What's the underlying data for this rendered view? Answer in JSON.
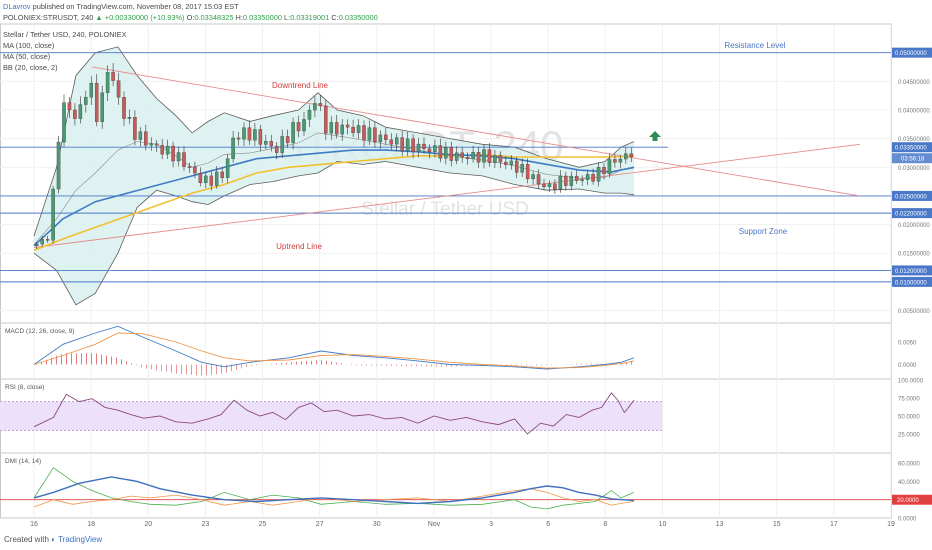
{
  "header": {
    "author": "DLavrov",
    "published": "published on TradingView.com, November 08, 2017 15:03 EST",
    "symbol": "POLONIEX:STRUSDT, 240",
    "change": "▲ +0.00330000 (+10.93%)",
    "open_label": "O:",
    "open": "0.03348325",
    "high_label": "H:",
    "high": "0.03350000",
    "low_label": "L:",
    "low": "0.03319001",
    "close_label": "C:",
    "close": "0.03350000"
  },
  "legend": [
    "Stellar / Tether USD, 240, POLONIEX",
    "MA (100, close)",
    "MA (50, close)",
    "BB (20, close, 2)"
  ],
  "watermark": {
    "symbol": "STRUSDT, 240",
    "name": "Stellar / Tether USD"
  },
  "footer": {
    "created_with": "Created with",
    "brand": "TradingView"
  },
  "colors": {
    "candle_up": "#4b9a73",
    "candle_down": "#c85a5a",
    "ma100": "#f2c12e",
    "ma50": "#3f7cc4",
    "bb_fill": "#d6efef",
    "bb_line": "#5b5b5b",
    "trend": "#e88a8a",
    "level": "#4a78c8",
    "macd": "#3f7cc4",
    "signal": "#f0964a",
    "rsi": "#8b4a7a",
    "rsi_band": "#ece0fb",
    "plus_di": "#4caf50",
    "minus_di": "#f0964a",
    "adx": "#3f6fbf",
    "dmi_level": "#e04040"
  },
  "chart_data": [
    {
      "type": "candlestick",
      "title": "Stellar / Tether USD, 240, POLONIEX",
      "x_ticks": [
        "16",
        "18",
        "20",
        "23",
        "25",
        "27",
        "30",
        "Nov",
        "3",
        "6",
        "8",
        "10",
        "13",
        "15",
        "17",
        "19"
      ],
      "y_ticks": [
        "0.05000000",
        "0.04500000",
        "0.04000000",
        "0.03500000",
        "0.03000000",
        "0.02500000",
        "0.02000000",
        "0.01500000",
        "0.01000000",
        "0.00500000"
      ],
      "ylim": [
        0.003,
        0.055
      ],
      "x_range": [
        15.6,
        34.2
      ],
      "close_series": [
        [
          15.6,
          0.0163
        ],
        [
          16.1,
          0.018
        ],
        [
          16.3,
          0.034
        ],
        [
          16.6,
          0.042
        ],
        [
          16.9,
          0.038
        ],
        [
          17.3,
          0.045
        ],
        [
          17.6,
          0.038
        ],
        [
          17.9,
          0.048
        ],
        [
          18.2,
          0.042
        ],
        [
          18.5,
          0.038
        ],
        [
          18.8,
          0.0355
        ],
        [
          19.2,
          0.034
        ],
        [
          19.6,
          0.033
        ],
        [
          20.0,
          0.032
        ],
        [
          20.4,
          0.03
        ],
        [
          20.7,
          0.028
        ],
        [
          21.0,
          0.0275
        ],
        [
          21.5,
          0.029
        ],
        [
          21.8,
          0.0355
        ],
        [
          22.3,
          0.036
        ],
        [
          22.7,
          0.0345
        ],
        [
          23.1,
          0.033
        ],
        [
          23.6,
          0.0365
        ],
        [
          24.0,
          0.038
        ],
        [
          24.3,
          0.042
        ],
        [
          24.7,
          0.0365
        ],
        [
          25.3,
          0.037
        ],
        [
          25.8,
          0.036
        ],
        [
          26.4,
          0.035
        ],
        [
          27.0,
          0.034
        ],
        [
          27.5,
          0.0335
        ],
        [
          28.0,
          0.033
        ],
        [
          28.6,
          0.032
        ],
        [
          29.1,
          0.0318
        ],
        [
          29.6,
          0.032
        ],
        [
          30.1,
          0.031
        ],
        [
          30.6,
          0.03
        ],
        [
          31.0,
          0.0285
        ],
        [
          31.3,
          0.027
        ],
        [
          31.6,
          0.0265
        ],
        [
          31.9,
          0.0275
        ],
        [
          32.2,
          0.0278
        ],
        [
          32.6,
          0.028
        ],
        [
          33.0,
          0.0285
        ],
        [
          33.4,
          0.0305
        ],
        [
          33.7,
          0.0315
        ],
        [
          34.0,
          0.0318
        ],
        [
          34.2,
          0.0335
        ]
      ],
      "ma50": [
        [
          15.6,
          0.0163
        ],
        [
          16.5,
          0.021
        ],
        [
          17.5,
          0.024
        ],
        [
          18.5,
          0.0255
        ],
        [
          19.5,
          0.027
        ],
        [
          20.5,
          0.0285
        ],
        [
          21.5,
          0.03
        ],
        [
          22.5,
          0.0315
        ],
        [
          23.5,
          0.032
        ],
        [
          24.5,
          0.0325
        ],
        [
          25.5,
          0.033
        ],
        [
          26.5,
          0.033
        ],
        [
          27.5,
          0.0327
        ],
        [
          28.5,
          0.0322
        ],
        [
          29.5,
          0.032
        ],
        [
          30.5,
          0.0315
        ],
        [
          31.5,
          0.0305
        ],
        [
          32.5,
          0.0295
        ],
        [
          33.5,
          0.0292
        ],
        [
          34.2,
          0.03
        ]
      ],
      "ma100": [
        [
          15.6,
          0.0155
        ],
        [
          16.5,
          0.0175
        ],
        [
          17.5,
          0.0195
        ],
        [
          18.5,
          0.0215
        ],
        [
          19.5,
          0.0235
        ],
        [
          20.5,
          0.0255
        ],
        [
          21.5,
          0.027
        ],
        [
          22.5,
          0.029
        ],
        [
          23.5,
          0.03
        ],
        [
          24.5,
          0.0305
        ],
        [
          25.5,
          0.031
        ],
        [
          26.5,
          0.0315
        ],
        [
          27.5,
          0.032
        ],
        [
          28.5,
          0.032
        ],
        [
          29.5,
          0.0322
        ],
        [
          30.5,
          0.0318
        ],
        [
          31.5,
          0.0318
        ],
        [
          32.5,
          0.0318
        ],
        [
          33.5,
          0.0318
        ],
        [
          34.2,
          0.032
        ]
      ],
      "bb_upper": [
        [
          15.6,
          0.018
        ],
        [
          16.3,
          0.03
        ],
        [
          16.9,
          0.046
        ],
        [
          17.5,
          0.05
        ],
        [
          18.2,
          0.051
        ],
        [
          18.8,
          0.046
        ],
        [
          19.4,
          0.042
        ],
        [
          20.0,
          0.039
        ],
        [
          20.5,
          0.036
        ],
        [
          21.0,
          0.038
        ],
        [
          21.5,
          0.0395
        ],
        [
          22.3,
          0.038
        ],
        [
          23.0,
          0.039
        ],
        [
          23.8,
          0.04
        ],
        [
          24.4,
          0.043
        ],
        [
          25.0,
          0.04
        ],
        [
          25.8,
          0.039
        ],
        [
          26.5,
          0.037
        ],
        [
          27.5,
          0.036
        ],
        [
          28.5,
          0.035
        ],
        [
          29.5,
          0.034
        ],
        [
          30.5,
          0.0335
        ],
        [
          31.5,
          0.0315
        ],
        [
          32.5,
          0.03
        ],
        [
          33.3,
          0.031
        ],
        [
          33.8,
          0.0335
        ],
        [
          34.2,
          0.0345
        ]
      ],
      "bb_lower": [
        [
          15.6,
          0.015
        ],
        [
          16.3,
          0.012
        ],
        [
          16.9,
          0.006
        ],
        [
          17.5,
          0.008
        ],
        [
          18.2,
          0.015
        ],
        [
          18.8,
          0.023
        ],
        [
          19.4,
          0.026
        ],
        [
          20.0,
          0.025
        ],
        [
          20.5,
          0.024
        ],
        [
          21.0,
          0.0235
        ],
        [
          21.5,
          0.025
        ],
        [
          22.3,
          0.027
        ],
        [
          23.0,
          0.0275
        ],
        [
          23.8,
          0.0285
        ],
        [
          24.4,
          0.029
        ],
        [
          25.0,
          0.031
        ],
        [
          25.8,
          0.0305
        ],
        [
          26.5,
          0.031
        ],
        [
          27.5,
          0.03
        ],
        [
          28.5,
          0.029
        ],
        [
          29.5,
          0.0285
        ],
        [
          30.5,
          0.027
        ],
        [
          31.5,
          0.026
        ],
        [
          32.5,
          0.0262
        ],
        [
          33.3,
          0.0255
        ],
        [
          33.8,
          0.0255
        ],
        [
          34.2,
          0.0252
        ]
      ],
      "horizontal_levels": [
        0.05,
        0.0335,
        0.025,
        0.022,
        0.012,
        0.01
      ],
      "level_labels": [
        "0.05000000",
        "0.03350000",
        "0.02500000",
        "0.02200000",
        "0.01200000",
        "0.01000000"
      ],
      "countdown_label": "03:56:18",
      "downtrend_line": [
        [
          17.4,
          0.0475
        ],
        [
          41.2,
          0.025
        ]
      ],
      "uptrend_line": [
        [
          15.6,
          0.016
        ],
        [
          41.2,
          0.034
        ]
      ],
      "annotations": [
        "Resistance Level",
        "Downtrend Line",
        "Uptrend Line",
        "Support Zone"
      ]
    },
    {
      "type": "line",
      "title": "MACD (12, 26, close, 9)",
      "y_ticks": [
        "0.0050",
        "0.0000"
      ],
      "ylim": [
        -0.003,
        0.009
      ],
      "macd": [
        [
          15.6,
          0.0
        ],
        [
          16.5,
          0.0045
        ],
        [
          17.5,
          0.007
        ],
        [
          18.2,
          0.0085
        ],
        [
          19.0,
          0.006
        ],
        [
          20.0,
          0.003
        ],
        [
          20.8,
          0.0005
        ],
        [
          21.5,
          -0.0005
        ],
        [
          22.3,
          0.0005
        ],
        [
          23.5,
          0.0015
        ],
        [
          24.5,
          0.003
        ],
        [
          25.5,
          0.002
        ],
        [
          26.5,
          0.0015
        ],
        [
          27.5,
          0.0008
        ],
        [
          28.5,
          0.0
        ],
        [
          29.5,
          -0.0002
        ],
        [
          30.5,
          -0.0005
        ],
        [
          31.5,
          -0.001
        ],
        [
          32.5,
          -0.0005
        ],
        [
          33.3,
          0.0
        ],
        [
          33.8,
          0.0005
        ],
        [
          34.2,
          0.0015
        ]
      ],
      "signal": [
        [
          15.6,
          0.0
        ],
        [
          16.5,
          0.002
        ],
        [
          17.5,
          0.0045
        ],
        [
          18.2,
          0.007
        ],
        [
          19.0,
          0.0068
        ],
        [
          20.0,
          0.005
        ],
        [
          20.8,
          0.003
        ],
        [
          21.5,
          0.0015
        ],
        [
          22.3,
          0.0008
        ],
        [
          23.5,
          0.001
        ],
        [
          24.5,
          0.002
        ],
        [
          25.5,
          0.0022
        ],
        [
          26.5,
          0.0018
        ],
        [
          27.5,
          0.0012
        ],
        [
          28.5,
          0.0005
        ],
        [
          29.5,
          0.0
        ],
        [
          30.5,
          -0.0003
        ],
        [
          31.5,
          -0.0008
        ],
        [
          32.5,
          -0.0007
        ],
        [
          33.3,
          -0.0002
        ],
        [
          33.8,
          0.0002
        ],
        [
          34.2,
          0.0008
        ]
      ]
    },
    {
      "type": "line",
      "title": "RSI (8, close)",
      "y_ticks": [
        "100.0000",
        "75.0000",
        "50.0000",
        "25.0000"
      ],
      "ylim": [
        0,
        100
      ],
      "band": [
        30,
        70
      ],
      "rsi": [
        [
          15.6,
          35
        ],
        [
          16.2,
          48
        ],
        [
          16.6,
          80
        ],
        [
          17.0,
          70
        ],
        [
          17.4,
          74
        ],
        [
          17.8,
          62
        ],
        [
          18.2,
          58
        ],
        [
          18.6,
          52
        ],
        [
          19.0,
          47
        ],
        [
          19.5,
          50
        ],
        [
          20.0,
          42
        ],
        [
          20.5,
          40
        ],
        [
          21.0,
          46
        ],
        [
          21.4,
          52
        ],
        [
          21.8,
          72
        ],
        [
          22.2,
          58
        ],
        [
          22.6,
          50
        ],
        [
          23.0,
          55
        ],
        [
          23.4,
          45
        ],
        [
          23.8,
          62
        ],
        [
          24.2,
          68
        ],
        [
          24.6,
          56
        ],
        [
          25.0,
          58
        ],
        [
          25.5,
          50
        ],
        [
          26.0,
          52
        ],
        [
          26.5,
          46
        ],
        [
          27.0,
          48
        ],
        [
          27.5,
          40
        ],
        [
          28.0,
          50
        ],
        [
          28.5,
          44
        ],
        [
          29.0,
          48
        ],
        [
          29.5,
          42
        ],
        [
          30.0,
          38
        ],
        [
          30.5,
          46
        ],
        [
          30.9,
          25
        ],
        [
          31.3,
          40
        ],
        [
          31.7,
          36
        ],
        [
          32.1,
          52
        ],
        [
          32.5,
          48
        ],
        [
          32.9,
          58
        ],
        [
          33.2,
          62
        ],
        [
          33.5,
          82
        ],
        [
          33.7,
          72
        ],
        [
          33.9,
          55
        ],
        [
          34.0,
          60
        ],
        [
          34.2,
          72
        ]
      ]
    },
    {
      "type": "line",
      "title": "DMI (14, 14)",
      "y_ticks": [
        "60.0000",
        "40.0000",
        "20.0000",
        "0.0000"
      ],
      "ylim": [
        0,
        70
      ],
      "level": 20,
      "level_label": "20.0000",
      "adx": [
        [
          15.6,
          22
        ],
        [
          16.2,
          28
        ],
        [
          17.0,
          38
        ],
        [
          18.0,
          45
        ],
        [
          18.8,
          40
        ],
        [
          19.5,
          32
        ],
        [
          20.5,
          25
        ],
        [
          21.5,
          20
        ],
        [
          22.5,
          18
        ],
        [
          23.5,
          20
        ],
        [
          24.5,
          22
        ],
        [
          25.5,
          20
        ],
        [
          26.5,
          18
        ],
        [
          27.5,
          16
        ],
        [
          28.5,
          18
        ],
        [
          29.5,
          22
        ],
        [
          30.5,
          28
        ],
        [
          31.0,
          32
        ],
        [
          31.5,
          35
        ],
        [
          32.0,
          33
        ],
        [
          32.5,
          28
        ],
        [
          33.0,
          25
        ],
        [
          33.5,
          21
        ],
        [
          34.2,
          19
        ]
      ],
      "plus_di": [
        [
          15.6,
          22
        ],
        [
          16.2,
          55
        ],
        [
          16.8,
          40
        ],
        [
          17.4,
          30
        ],
        [
          18.0,
          22
        ],
        [
          18.6,
          18
        ],
        [
          19.2,
          15
        ],
        [
          20.0,
          14
        ],
        [
          20.8,
          18
        ],
        [
          21.5,
          28
        ],
        [
          22.3,
          20
        ],
        [
          23.0,
          25
        ],
        [
          23.8,
          22
        ],
        [
          24.5,
          15
        ],
        [
          25.5,
          18
        ],
        [
          26.5,
          15
        ],
        [
          27.5,
          16
        ],
        [
          28.5,
          14
        ],
        [
          29.5,
          15
        ],
        [
          30.5,
          20
        ],
        [
          31.0,
          12
        ],
        [
          31.5,
          10
        ],
        [
          32.0,
          14
        ],
        [
          32.5,
          16
        ],
        [
          33.0,
          18
        ],
        [
          33.5,
          30
        ],
        [
          33.8,
          22
        ],
        [
          34.2,
          28
        ]
      ],
      "minus_di": [
        [
          15.6,
          12
        ],
        [
          16.2,
          20
        ],
        [
          16.8,
          15
        ],
        [
          17.4,
          18
        ],
        [
          18.0,
          20
        ],
        [
          18.6,
          24
        ],
        [
          19.2,
          22
        ],
        [
          20.0,
          25
        ],
        [
          20.8,
          20
        ],
        [
          21.5,
          14
        ],
        [
          22.3,
          18
        ],
        [
          23.0,
          14
        ],
        [
          23.8,
          18
        ],
        [
          24.5,
          22
        ],
        [
          25.5,
          18
        ],
        [
          26.5,
          20
        ],
        [
          27.5,
          22
        ],
        [
          28.5,
          18
        ],
        [
          29.5,
          24
        ],
        [
          30.5,
          30
        ],
        [
          31.0,
          32
        ],
        [
          31.5,
          28
        ],
        [
          32.0,
          22
        ],
        [
          32.5,
          18
        ],
        [
          33.0,
          20
        ],
        [
          33.5,
          14
        ],
        [
          33.8,
          16
        ],
        [
          34.2,
          18
        ]
      ]
    }
  ]
}
